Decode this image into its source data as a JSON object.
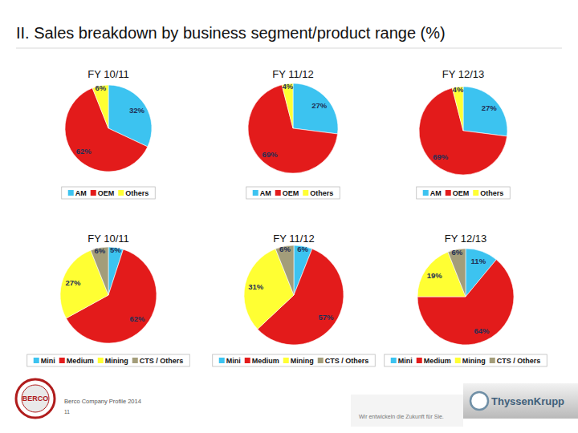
{
  "title": "II. Sales breakdown by business segment/product range (%)",
  "chart_data": [
    {
      "type": "pie",
      "title": "FY 10/11",
      "categories": [
        "AM",
        "OEM",
        "Others"
      ],
      "values": [
        32,
        62,
        6
      ],
      "value_labels": [
        "32%",
        "62%",
        "6%"
      ],
      "colors": [
        "#3cc3f0",
        "#e31b1b",
        "#ffff33"
      ],
      "data_labels": true,
      "legend": "bottom"
    },
    {
      "type": "pie",
      "title": "FY 11/12",
      "categories": [
        "AM",
        "OEM",
        "Others"
      ],
      "values": [
        27,
        69,
        4
      ],
      "value_labels": [
        "27%",
        "69%",
        "4%"
      ],
      "colors": [
        "#3cc3f0",
        "#e31b1b",
        "#ffff33"
      ],
      "data_labels": true,
      "legend": "bottom"
    },
    {
      "type": "pie",
      "title": "FY 12/13",
      "categories": [
        "AM",
        "OEM",
        "Others"
      ],
      "values": [
        27,
        69,
        4
      ],
      "value_labels": [
        "27%",
        "69%",
        "4%"
      ],
      "colors": [
        "#3cc3f0",
        "#e31b1b",
        "#ffff33"
      ],
      "data_labels": true,
      "legend": "bottom"
    },
    {
      "type": "pie",
      "title": "FY 10/11",
      "categories": [
        "Mini",
        "Medium",
        "Mining",
        "CTS / Others"
      ],
      "values": [
        5,
        62,
        27,
        6
      ],
      "value_labels": [
        "5%",
        "62%",
        "27%",
        "6%"
      ],
      "colors": [
        "#3cc3f0",
        "#e31b1b",
        "#ffff33",
        "#a39d7a"
      ],
      "data_labels": true,
      "legend": "bottom"
    },
    {
      "type": "pie",
      "title": "FY 11/12",
      "categories": [
        "Mini",
        "Medium",
        "Mining",
        "CTS / Others"
      ],
      "values": [
        6,
        57,
        31,
        6
      ],
      "value_labels": [
        "6%",
        "57%",
        "31%",
        "6%"
      ],
      "colors": [
        "#3cc3f0",
        "#e31b1b",
        "#ffff33",
        "#a39d7a"
      ],
      "data_labels": true,
      "legend": "bottom"
    },
    {
      "type": "pie",
      "title": "FY 12/13",
      "categories": [
        "Mini",
        "Medium",
        "Mining",
        "CTS / Others"
      ],
      "values": [
        11,
        64,
        19,
        6
      ],
      "value_labels": [
        "11%",
        "64%",
        "19%",
        "6%"
      ],
      "colors": [
        "#3cc3f0",
        "#e31b1b",
        "#ffff33",
        "#a39d7a"
      ],
      "data_labels": true,
      "legend": "bottom"
    }
  ],
  "footer": {
    "logo_left": "BERCO",
    "company_text": "Berco Company Profile 2014",
    "page": "11",
    "slogan": "Wir entwickeln die Zukunft für Sie.",
    "logo_right": "ThyssenKrupp"
  }
}
